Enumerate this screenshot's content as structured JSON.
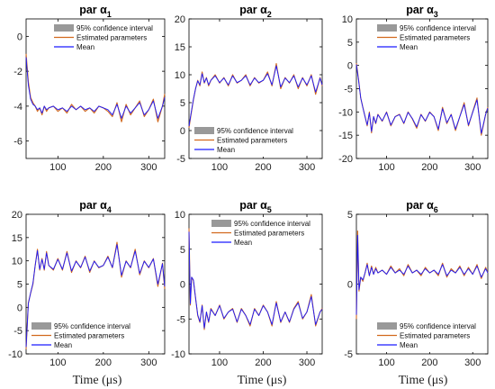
{
  "figure": {
    "xlabel": "Time (μs)",
    "legend": {
      "ci": "95% confidence interval",
      "est": "Estimated parameters",
      "mean": "Mean"
    }
  },
  "colors": {
    "estimated": "#d2691e",
    "mean": "#1a1aff",
    "ci": "#999999",
    "axes": "#000000"
  },
  "chart_data": [
    {
      "type": "line",
      "title": "par α1",
      "title_base": "par α",
      "title_sub": "1",
      "xlim": [
        30,
        335
      ],
      "ylim": [
        -7,
        1
      ],
      "xticks": [
        100,
        200,
        300
      ],
      "yticks": [
        -6,
        -4,
        -2,
        0
      ],
      "legend_position": "top-right",
      "series": [
        {
          "name": "Estimated parameters",
          "x": [
            30,
            35,
            40,
            45,
            50,
            55,
            60,
            65,
            70,
            75,
            80,
            90,
            100,
            110,
            120,
            130,
            140,
            150,
            160,
            170,
            180,
            190,
            200,
            210,
            220,
            230,
            240,
            250,
            260,
            270,
            280,
            290,
            300,
            310,
            320,
            330,
            335
          ],
          "y": [
            -1.0,
            -2.6,
            -3.5,
            -3.8,
            -4.0,
            -4.3,
            -4.1,
            -4.5,
            -4.0,
            -4.3,
            -4.1,
            -4.0,
            -4.3,
            -4.1,
            -4.4,
            -3.9,
            -4.2,
            -4.0,
            -4.3,
            -4.1,
            -4.4,
            -4.0,
            -4.1,
            -4.3,
            -4.6,
            -3.8,
            -4.9,
            -3.9,
            -4.5,
            -4.1,
            -3.7,
            -4.6,
            -4.2,
            -3.6,
            -4.9,
            -4.0,
            -3.3
          ]
        },
        {
          "name": "Mean",
          "x": [
            30,
            35,
            40,
            45,
            50,
            55,
            60,
            65,
            70,
            75,
            80,
            90,
            100,
            110,
            120,
            130,
            140,
            150,
            160,
            170,
            180,
            190,
            200,
            210,
            220,
            230,
            240,
            250,
            260,
            270,
            280,
            290,
            300,
            310,
            320,
            330,
            335
          ],
          "y": [
            -1.2,
            -2.8,
            -3.6,
            -3.9,
            -4.0,
            -4.2,
            -4.1,
            -4.4,
            -4.0,
            -4.2,
            -4.1,
            -4.0,
            -4.2,
            -4.1,
            -4.3,
            -4.0,
            -4.2,
            -4.0,
            -4.2,
            -4.1,
            -4.3,
            -4.0,
            -4.1,
            -4.2,
            -4.5,
            -3.9,
            -4.7,
            -4.0,
            -4.4,
            -4.1,
            -3.8,
            -4.5,
            -4.2,
            -3.7,
            -4.7,
            -4.0,
            -3.5
          ]
        }
      ]
    },
    {
      "type": "line",
      "title": "par α2",
      "title_base": "par α",
      "title_sub": "2",
      "xlim": [
        30,
        335
      ],
      "ylim": [
        -5,
        20
      ],
      "xticks": [
        100,
        200,
        300
      ],
      "yticks": [
        -5,
        0,
        5,
        10,
        15,
        20
      ],
      "legend_position": "bottom-left",
      "series": [
        {
          "name": "Estimated parameters",
          "x": [
            30,
            35,
            40,
            45,
            50,
            55,
            60,
            65,
            70,
            75,
            80,
            90,
            100,
            110,
            120,
            130,
            140,
            150,
            160,
            170,
            180,
            190,
            200,
            210,
            220,
            230,
            240,
            250,
            260,
            270,
            280,
            290,
            300,
            310,
            320,
            330,
            335
          ],
          "y": [
            0.5,
            3.0,
            5.5,
            7.5,
            9.0,
            8.0,
            10.5,
            8.5,
            9.5,
            8.0,
            9.0,
            10.0,
            8.5,
            9.5,
            8.0,
            10.0,
            8.5,
            9.0,
            10.0,
            8.0,
            9.5,
            8.5,
            9.0,
            10.5,
            8.0,
            12.0,
            7.5,
            9.5,
            8.5,
            10.0,
            7.5,
            9.5,
            8.0,
            10.0,
            6.5,
            9.5,
            8.0
          ]
        },
        {
          "name": "Mean",
          "x": [
            30,
            35,
            40,
            45,
            50,
            55,
            60,
            65,
            70,
            75,
            80,
            90,
            100,
            110,
            120,
            130,
            140,
            150,
            160,
            170,
            180,
            190,
            200,
            210,
            220,
            230,
            240,
            250,
            260,
            270,
            280,
            290,
            300,
            310,
            320,
            330,
            335
          ],
          "y": [
            0.8,
            3.2,
            5.6,
            7.5,
            8.9,
            8.2,
            10.2,
            8.6,
            9.4,
            8.2,
            9.0,
            9.8,
            8.6,
            9.4,
            8.2,
            9.8,
            8.6,
            9.0,
            9.8,
            8.2,
            9.4,
            8.6,
            9.0,
            10.2,
            8.2,
            11.6,
            7.8,
            9.4,
            8.6,
            9.8,
            7.8,
            9.4,
            8.2,
            9.8,
            6.9,
            9.4,
            8.2
          ]
        }
      ]
    },
    {
      "type": "line",
      "title": "par α3",
      "title_base": "par α",
      "title_sub": "3",
      "xlim": [
        30,
        335
      ],
      "ylim": [
        -20,
        10
      ],
      "xticks": [
        100,
        200,
        300
      ],
      "yticks": [
        -20,
        -15,
        -10,
        -5,
        0,
        5,
        10
      ],
      "legend_position": "top-right",
      "series": [
        {
          "name": "Estimated parameters",
          "x": [
            30,
            35,
            40,
            45,
            50,
            55,
            60,
            65,
            70,
            75,
            80,
            90,
            100,
            110,
            120,
            130,
            140,
            150,
            160,
            170,
            180,
            190,
            200,
            210,
            220,
            230,
            240,
            250,
            260,
            270,
            280,
            290,
            300,
            310,
            320,
            330,
            335
          ],
          "y": [
            0.5,
            -3.0,
            -7.0,
            -9.0,
            -11.0,
            -13.0,
            -10.0,
            -14.5,
            -11.0,
            -12.5,
            -10.5,
            -12.0,
            -10.0,
            -13.0,
            -11.0,
            -10.5,
            -12.5,
            -10.0,
            -11.5,
            -13.5,
            -10.5,
            -12.0,
            -10.0,
            -11.0,
            -14.0,
            -9.0,
            -12.5,
            -10.5,
            -14.0,
            -11.0,
            -8.0,
            -13.0,
            -10.0,
            -7.0,
            -15.0,
            -10.5,
            -9.0
          ]
        },
        {
          "name": "Mean",
          "x": [
            30,
            35,
            40,
            45,
            50,
            55,
            60,
            65,
            70,
            75,
            80,
            90,
            100,
            110,
            120,
            130,
            140,
            150,
            160,
            170,
            180,
            190,
            200,
            210,
            220,
            230,
            240,
            250,
            260,
            270,
            280,
            290,
            300,
            310,
            320,
            330,
            335
          ],
          "y": [
            0.2,
            -3.2,
            -7.0,
            -9.1,
            -11.0,
            -12.8,
            -10.2,
            -14.2,
            -11.0,
            -12.4,
            -10.6,
            -11.9,
            -10.1,
            -12.8,
            -11.0,
            -10.6,
            -12.4,
            -10.1,
            -11.4,
            -13.2,
            -10.6,
            -11.9,
            -10.1,
            -11.0,
            -13.7,
            -9.3,
            -12.3,
            -10.6,
            -13.7,
            -11.0,
            -8.4,
            -12.8,
            -10.1,
            -7.4,
            -14.6,
            -10.5,
            -9.2
          ]
        }
      ]
    },
    {
      "type": "line",
      "title": "par α4",
      "title_base": "par α",
      "title_sub": "4",
      "xlim": [
        30,
        335
      ],
      "ylim": [
        -10,
        20
      ],
      "xticks": [
        100,
        200,
        300
      ],
      "yticks": [
        -10,
        -5,
        0,
        5,
        10,
        15,
        20
      ],
      "legend_position": "bottom-left",
      "series": [
        {
          "name": "Estimated parameters",
          "x": [
            30,
            35,
            40,
            45,
            50,
            55,
            60,
            65,
            70,
            75,
            80,
            90,
            100,
            110,
            120,
            130,
            140,
            150,
            160,
            170,
            180,
            190,
            200,
            210,
            220,
            230,
            240,
            250,
            260,
            270,
            280,
            290,
            300,
            310,
            320,
            330,
            335
          ],
          "y": [
            -9.0,
            1.0,
            3.0,
            5.0,
            9.0,
            12.5,
            8.0,
            10.5,
            8.0,
            12.0,
            9.0,
            8.0,
            10.5,
            8.0,
            12.0,
            7.5,
            10.0,
            8.5,
            11.0,
            7.5,
            10.0,
            8.5,
            9.0,
            11.0,
            8.5,
            14.0,
            6.5,
            10.0,
            8.5,
            12.5,
            7.0,
            10.0,
            8.5,
            10.5,
            4.5,
            9.5,
            4.0
          ]
        },
        {
          "name": "Mean",
          "x": [
            30,
            35,
            40,
            45,
            50,
            55,
            60,
            65,
            70,
            75,
            80,
            90,
            100,
            110,
            120,
            130,
            140,
            150,
            160,
            170,
            180,
            190,
            200,
            210,
            220,
            230,
            240,
            250,
            260,
            270,
            280,
            290,
            300,
            310,
            320,
            330,
            335
          ],
          "y": [
            -8.5,
            0.8,
            3.1,
            5.2,
            9.0,
            12.2,
            8.2,
            10.3,
            8.2,
            11.7,
            9.0,
            8.2,
            10.3,
            8.2,
            11.7,
            7.8,
            9.9,
            8.6,
            10.8,
            7.8,
            9.9,
            8.6,
            9.0,
            10.8,
            8.6,
            13.5,
            6.9,
            9.9,
            8.6,
            12.1,
            7.3,
            9.9,
            8.6,
            10.4,
            5.0,
            9.4,
            4.5
          ]
        }
      ]
    },
    {
      "type": "line",
      "title": "par α5",
      "title_base": "par α",
      "title_sub": "5",
      "xlim": [
        30,
        335
      ],
      "ylim": [
        -10,
        10
      ],
      "xticks": [
        100,
        200,
        300
      ],
      "yticks": [
        -10,
        -5,
        0,
        5,
        10
      ],
      "legend_position": "top-right",
      "series": [
        {
          "name": "Estimated parameters",
          "x": [
            30,
            33,
            36,
            40,
            45,
            50,
            55,
            60,
            65,
            70,
            75,
            80,
            90,
            100,
            110,
            120,
            130,
            140,
            150,
            160,
            170,
            180,
            190,
            200,
            210,
            220,
            230,
            240,
            250,
            260,
            270,
            280,
            290,
            300,
            310,
            320,
            330,
            335
          ],
          "y": [
            8.0,
            -3.0,
            1.0,
            0.5,
            -2.0,
            -4.5,
            -5.5,
            -3.0,
            -6.5,
            -4.0,
            -5.5,
            -3.5,
            -4.5,
            -3.0,
            -5.0,
            -4.0,
            -3.5,
            -5.5,
            -3.5,
            -4.5,
            -6.0,
            -3.5,
            -4.5,
            -3.0,
            -4.0,
            -6.0,
            -2.5,
            -5.5,
            -4.0,
            -5.5,
            -3.5,
            -2.5,
            -5.0,
            -4.0,
            -1.5,
            -6.0,
            -4.0,
            -3.5
          ]
        },
        {
          "name": "Mean",
          "x": [
            30,
            33,
            36,
            40,
            45,
            50,
            55,
            60,
            65,
            70,
            75,
            80,
            90,
            100,
            110,
            120,
            130,
            140,
            150,
            160,
            170,
            180,
            190,
            200,
            210,
            220,
            230,
            240,
            250,
            260,
            270,
            280,
            290,
            300,
            310,
            320,
            330,
            335
          ],
          "y": [
            7.5,
            -2.8,
            1.0,
            0.6,
            -2.0,
            -4.4,
            -5.4,
            -3.1,
            -6.3,
            -4.0,
            -5.4,
            -3.6,
            -4.5,
            -3.1,
            -4.9,
            -4.0,
            -3.6,
            -5.4,
            -3.6,
            -4.5,
            -5.8,
            -3.6,
            -4.5,
            -3.1,
            -4.0,
            -5.8,
            -2.7,
            -5.4,
            -4.0,
            -5.4,
            -3.6,
            -2.7,
            -4.9,
            -4.0,
            -1.8,
            -5.8,
            -4.0,
            -3.6
          ]
        }
      ]
    },
    {
      "type": "line",
      "title": "par α6",
      "title_base": "par α",
      "title_sub": "6",
      "xlim": [
        30,
        335
      ],
      "ylim": [
        -5,
        5
      ],
      "xticks": [
        100,
        200,
        300
      ],
      "yticks": [
        -5,
        0,
        5
      ],
      "legend_position": "bottom-right",
      "series": [
        {
          "name": "Estimated parameters",
          "x": [
            30,
            33,
            36,
            40,
            45,
            50,
            55,
            60,
            65,
            70,
            75,
            80,
            90,
            100,
            110,
            120,
            130,
            140,
            150,
            160,
            170,
            180,
            190,
            200,
            210,
            220,
            230,
            240,
            250,
            260,
            270,
            280,
            290,
            300,
            310,
            320,
            330,
            335
          ],
          "y": [
            -2.5,
            3.8,
            -0.5,
            0.5,
            0.2,
            0.8,
            1.5,
            0.6,
            1.3,
            0.7,
            1.2,
            0.8,
            1.0,
            0.7,
            1.3,
            0.8,
            1.1,
            0.6,
            1.4,
            0.8,
            1.0,
            0.6,
            1.2,
            0.8,
            1.0,
            0.6,
            1.5,
            0.5,
            1.1,
            0.8,
            1.3,
            0.6,
            1.2,
            0.7,
            1.4,
            0.4,
            1.2,
            0.8
          ]
        },
        {
          "name": "Mean",
          "x": [
            30,
            33,
            36,
            40,
            45,
            50,
            55,
            60,
            65,
            70,
            75,
            80,
            90,
            100,
            110,
            120,
            130,
            140,
            150,
            160,
            170,
            180,
            190,
            200,
            210,
            220,
            230,
            240,
            250,
            260,
            270,
            280,
            290,
            300,
            310,
            320,
            330,
            335
          ],
          "y": [
            -2.2,
            3.5,
            -0.4,
            0.5,
            0.3,
            0.8,
            1.4,
            0.6,
            1.2,
            0.7,
            1.1,
            0.8,
            1.0,
            0.7,
            1.2,
            0.8,
            1.0,
            0.7,
            1.3,
            0.8,
            1.0,
            0.7,
            1.1,
            0.8,
            1.0,
            0.7,
            1.4,
            0.6,
            1.0,
            0.8,
            1.2,
            0.7,
            1.1,
            0.7,
            1.3,
            0.5,
            1.1,
            0.8
          ]
        }
      ]
    }
  ]
}
